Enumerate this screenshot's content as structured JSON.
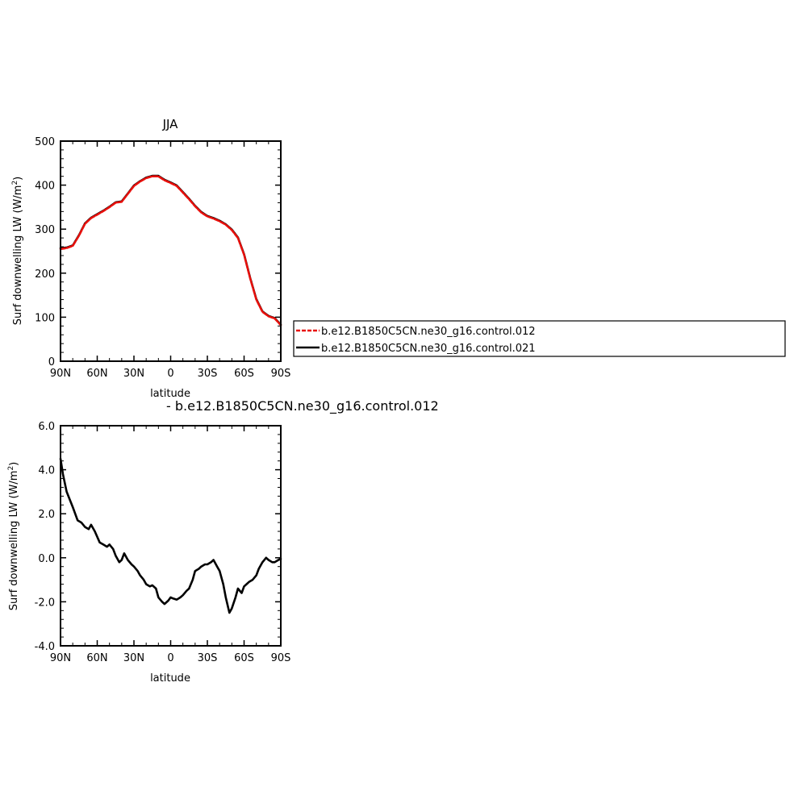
{
  "chart_data": [
    {
      "type": "line",
      "title": "JJA",
      "xlabel": "latitude",
      "ylabel": "Surf downwelling LW (W/m²)",
      "ylabel_main": "Surf downwelling LW (W/m",
      "ylabel_sup": "2",
      "ylabel_end": ")",
      "xlim": [
        90,
        -90
      ],
      "ylim": [
        0,
        500
      ],
      "xticks": [
        90,
        60,
        30,
        0,
        -30,
        -60,
        -90
      ],
      "xtick_labels": [
        "90N",
        "60N",
        "30N",
        "0",
        "30S",
        "60S",
        "90S"
      ],
      "yticks": [
        0,
        100,
        200,
        300,
        400,
        500
      ],
      "ytick_labels": [
        "0",
        "100",
        "200",
        "300",
        "400",
        "500"
      ],
      "grid": false,
      "legend_position": "right",
      "x": [
        90,
        85,
        80,
        75,
        70,
        65,
        60,
        55,
        50,
        45,
        40,
        35,
        30,
        25,
        20,
        15,
        10,
        5,
        0,
        -5,
        -10,
        -15,
        -20,
        -25,
        -30,
        -35,
        -40,
        -45,
        -50,
        -55,
        -60,
        -65,
        -70,
        -75,
        -80,
        -85,
        -90
      ],
      "series": [
        {
          "name": "b.e12.B1850C5CN.ne30_g16.control.012",
          "color": "#e8100c",
          "dashed": true,
          "values": [
            255,
            257,
            262,
            285,
            312,
            325,
            333,
            341,
            350,
            360,
            362,
            380,
            398,
            408,
            416,
            420,
            420,
            411,
            405,
            398,
            383,
            368,
            352,
            338,
            329,
            324,
            318,
            310,
            298,
            280,
            242,
            188,
            140,
            112,
            102,
            97,
            82
          ]
        },
        {
          "name": "b.e12.B1850C5CN.ne30_g16.control.021",
          "color": "#000000",
          "dashed": false,
          "values": [
            257,
            258,
            263,
            286,
            313,
            326,
            334,
            342,
            351,
            361,
            363,
            381,
            399,
            409,
            417,
            421,
            421,
            412,
            406,
            399,
            384,
            369,
            353,
            339,
            330,
            325,
            319,
            311,
            299,
            281,
            243,
            189,
            141,
            113,
            103,
            98,
            83
          ]
        }
      ]
    },
    {
      "type": "line",
      "title": "- b.e12.B1850C5CN.ne30_g16.control.012",
      "xlabel": "latitude",
      "ylabel": "Surf downwelling LW (W/m²)",
      "ylabel_main": "Surf downwelling LW (W/m",
      "ylabel_sup": "2",
      "ylabel_end": ")",
      "xlim": [
        90,
        -90
      ],
      "ylim": [
        -4,
        6
      ],
      "xticks": [
        90,
        60,
        30,
        0,
        -30,
        -60,
        -90
      ],
      "xtick_labels": [
        "90N",
        "60N",
        "30N",
        "0",
        "30S",
        "60S",
        "90S"
      ],
      "yticks": [
        -4,
        -2,
        0,
        2,
        4,
        6
      ],
      "ytick_labels": [
        "-4.0",
        "-2.0",
        "0.0",
        "2.0",
        "4.0",
        "6.0"
      ],
      "grid": false,
      "x": [
        90,
        88,
        85,
        80,
        76,
        73,
        70,
        67,
        65,
        62,
        58,
        55,
        52,
        50,
        47,
        45,
        42,
        40,
        38,
        35,
        32,
        30,
        27,
        25,
        22,
        20,
        17,
        15,
        12,
        10,
        7,
        5,
        2,
        0,
        -2,
        -5,
        -8,
        -10,
        -13,
        -15,
        -18,
        -20,
        -23,
        -25,
        -28,
        -30,
        -33,
        -35,
        -38,
        -40,
        -43,
        -45,
        -48,
        -50,
        -53,
        -55,
        -58,
        -60,
        -62,
        -64,
        -67,
        -70,
        -72,
        -75,
        -78,
        -80,
        -83,
        -85,
        -88,
        -90
      ],
      "series": [
        {
          "name": "",
          "color": "#000000",
          "dashed": false,
          "values": [
            4.5,
            3.8,
            3.0,
            2.3,
            1.7,
            1.6,
            1.4,
            1.3,
            1.5,
            1.2,
            0.7,
            0.6,
            0.5,
            0.6,
            0.4,
            0.1,
            -0.2,
            -0.1,
            0.2,
            -0.1,
            -0.3,
            -0.4,
            -0.6,
            -0.8,
            -1.0,
            -1.2,
            -1.3,
            -1.25,
            -1.4,
            -1.8,
            -2.0,
            -2.1,
            -1.95,
            -1.8,
            -1.85,
            -1.9,
            -1.8,
            -1.7,
            -1.5,
            -1.4,
            -1.0,
            -0.6,
            -0.5,
            -0.4,
            -0.3,
            -0.3,
            -0.2,
            -0.1,
            -0.4,
            -0.6,
            -1.2,
            -1.8,
            -2.5,
            -2.3,
            -1.8,
            -1.4,
            -1.6,
            -1.3,
            -1.2,
            -1.1,
            -1.0,
            -0.8,
            -0.5,
            -0.2,
            0.0,
            -0.1,
            -0.2,
            -0.2,
            -0.1,
            -0.05
          ]
        }
      ]
    }
  ]
}
